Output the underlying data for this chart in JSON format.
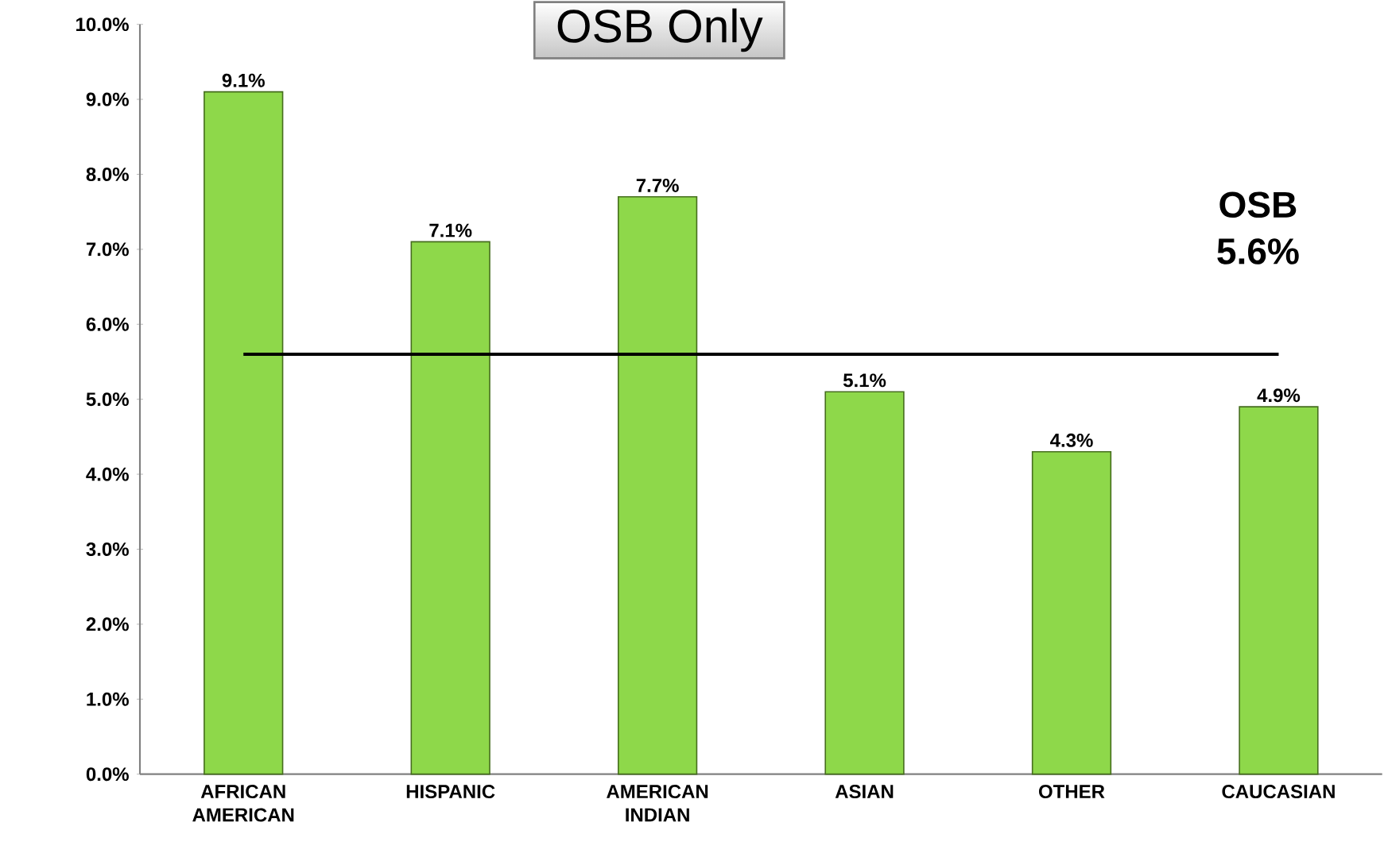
{
  "chart_data": {
    "type": "bar",
    "title": "OSB Only",
    "categories": [
      "AFRICAN AMERICAN",
      "HISPANIC",
      "AMERICAN INDIAN",
      "ASIAN",
      "OTHER",
      "CAUCASIAN"
    ],
    "values": [
      9.1,
      7.1,
      7.7,
      5.1,
      4.3,
      4.9
    ],
    "value_labels": [
      "9.1%",
      "7.1%",
      "7.7%",
      "5.1%",
      "4.3%",
      "4.9%"
    ],
    "color": "#8ed84a",
    "ylim": [
      0,
      10
    ],
    "yticks": [
      {
        "value": 0,
        "label": "0.0%"
      },
      {
        "value": 1,
        "label": "1.0%"
      },
      {
        "value": 2,
        "label": "2.0%"
      },
      {
        "value": 3,
        "label": "3.0%"
      },
      {
        "value": 4,
        "label": "4.0%"
      },
      {
        "value": 5,
        "label": "5.0%"
      },
      {
        "value": 6,
        "label": "6.0%"
      },
      {
        "value": 7,
        "label": "7.0%"
      },
      {
        "value": 8,
        "label": "8.0%"
      },
      {
        "value": 9,
        "label": "9.0%"
      },
      {
        "value": 10,
        "label": "10.0%"
      }
    ],
    "ref_lines": [
      {
        "axis": "y",
        "value": 5.6,
        "label": "OSB 5.6%",
        "color": "#000000"
      }
    ],
    "grid": false
  }
}
